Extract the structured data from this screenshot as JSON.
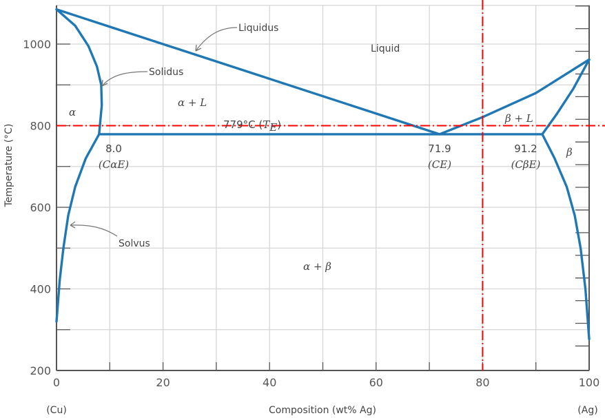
{
  "chart_data": {
    "type": "line",
    "title": "",
    "xlabel": "Composition (wt% Ag)",
    "ylabel": "Temperature (°C)",
    "xlim": [
      0,
      100
    ],
    "ylim": [
      200,
      1095
    ],
    "xticks": [
      0,
      20,
      40,
      60,
      80,
      100
    ],
    "yticks": [
      200,
      400,
      600,
      800,
      1000
    ],
    "x_end_labels": {
      "left": "(Cu)",
      "right": "(Ag)"
    },
    "grid": true,
    "line_color": "#1f77b4",
    "series": [
      {
        "name": "Liquidus",
        "points": [
          [
            0,
            1085
          ],
          [
            71.9,
            779
          ]
        ]
      },
      {
        "points": [
          [
            71.9,
            779
          ],
          [
            80,
            821
          ],
          [
            90,
            880
          ],
          [
            100,
            962
          ]
        ]
      },
      {
        "name": "Solidus",
        "points": [
          [
            0,
            1085
          ],
          [
            3.5,
            1045
          ],
          [
            6,
            995
          ],
          [
            7.6,
            945
          ],
          [
            8.4,
            900
          ],
          [
            8.5,
            850
          ],
          [
            8.0,
            779
          ]
        ]
      },
      {
        "points": [
          [
            91.2,
            779
          ],
          [
            94,
            830
          ],
          [
            97,
            890
          ],
          [
            100,
            962
          ]
        ]
      },
      {
        "points": [
          [
            8.0,
            779
          ],
          [
            91.2,
            779
          ]
        ]
      },
      {
        "name": "Solvus",
        "points": [
          [
            8.0,
            779
          ],
          [
            5.5,
            720
          ],
          [
            3.5,
            650
          ],
          [
            2.2,
            580
          ],
          [
            1.3,
            500
          ],
          [
            0.6,
            420
          ],
          [
            0,
            320
          ]
        ]
      },
      {
        "points": [
          [
            91.2,
            779
          ],
          [
            93.5,
            720
          ],
          [
            95.8,
            650
          ],
          [
            97.3,
            580
          ],
          [
            98.4,
            500
          ],
          [
            99.3,
            400
          ],
          [
            100,
            277
          ]
        ]
      }
    ],
    "reference_lines": {
      "color": "#ff0000",
      "style": "dash-dot",
      "horizontal_T": 800,
      "vertical_x": 80
    },
    "annotations": {
      "liquidus": "Liquidus",
      "solidus": "Solidus",
      "solvus": "Solvus",
      "liquid": "Liquid",
      "alpha": "α",
      "alpha_L": "α + L",
      "beta_L": "β + L",
      "beta": "β",
      "alpha_beta": "α + β",
      "te_value": "779°C (",
      "te_symbol": "T",
      "te_sub": "E",
      "te_close": ")",
      "c_alpha_e_value": "8.0",
      "c_alpha_e": "(CαE)",
      "c_e_value": "71.9",
      "c_e": "(CE)",
      "c_beta_e_value": "91.2",
      "c_beta_e": "(CβE)"
    }
  }
}
